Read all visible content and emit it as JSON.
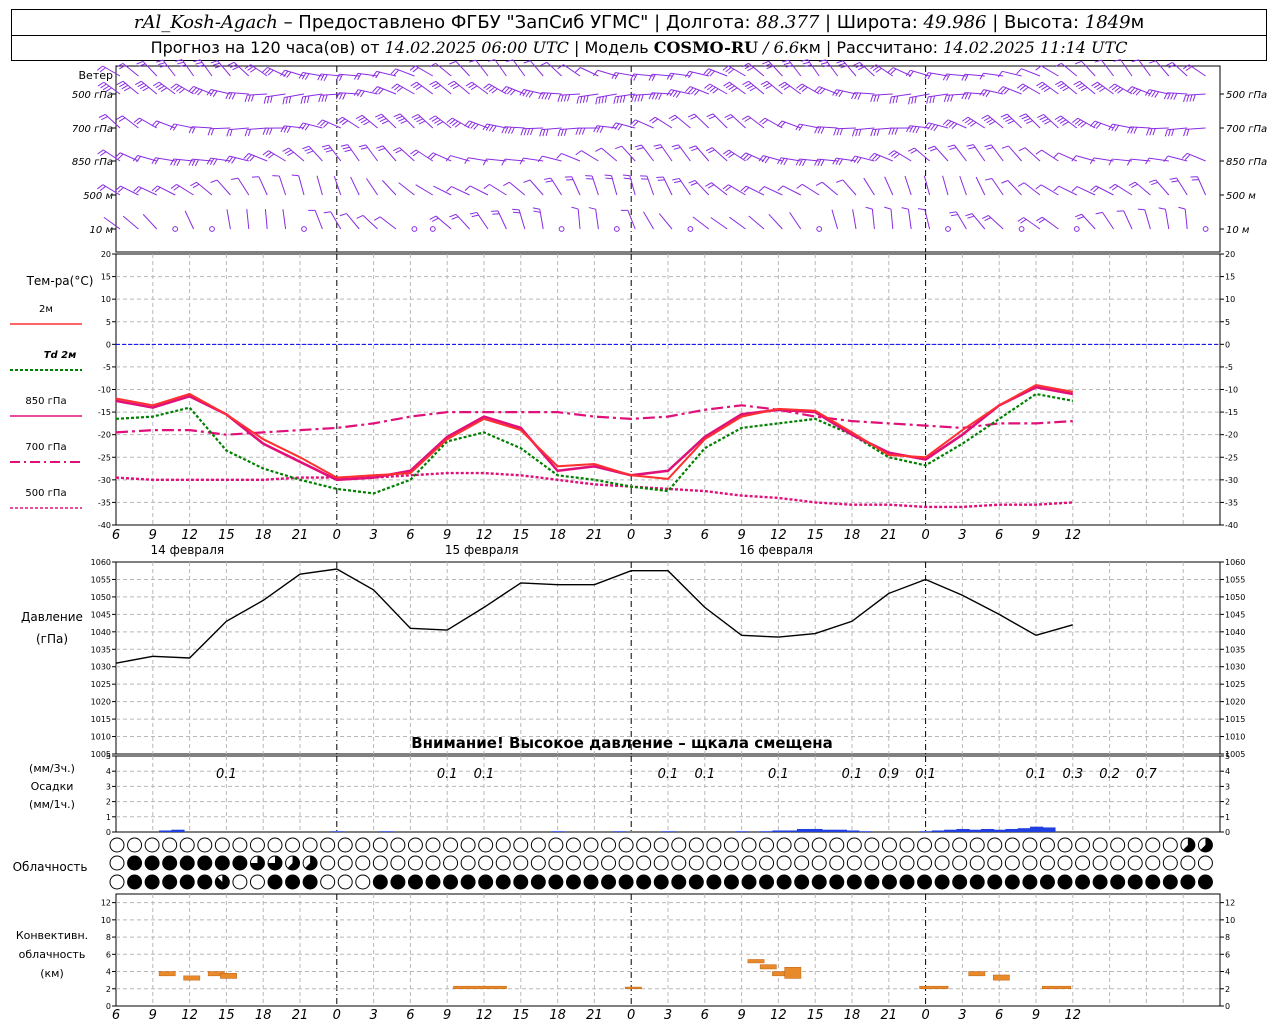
{
  "header": {
    "station": "rAl_Kosh-Agach",
    "provider": " – Предоставлено ФГБУ \"ЗапСиб УГМС\" | Долгота: ",
    "lon": "88.377",
    "lat_label": " | Широта: ",
    "lat": "49.986",
    "alt_label": " | Высота: ",
    "alt": "1849",
    "alt_unit": "м",
    "forecast_label": "Прогноз на 120 часа(ов) от ",
    "forecast_time": "14.02.2025 06:00 UTC",
    "model_label": " | Модель ",
    "model": "COSMO-RU",
    "res": " / 6.6",
    "res_unit": "км",
    "calc_label": " | Рассчитано: ",
    "calc_time": "14.02.2025 11:14 UTC"
  },
  "colors": {
    "t2m": "#ff3030",
    "td2m": "#008000",
    "t850": "#e0107a",
    "t700": "#e0107a",
    "t500": "#e0107a",
    "wind": "#8a2be2",
    "zero": "#0000ff",
    "precip": "#1f3fe0",
    "convective": "#e88a2a"
  },
  "chart_data": [
    {
      "type": "wind-barbs",
      "label": "Ветер",
      "levels": [
        "500 гПа",
        "700 гПа",
        "850 гПа",
        "500 м",
        "10 м"
      ],
      "note": "direction in degrees, speed in knots, every 3 h from 06 UTC"
    },
    {
      "type": "line",
      "ylabel": "Тем-ра(°C)",
      "ylim": [
        -40,
        20
      ],
      "yticks": [
        20,
        15,
        10,
        5,
        0,
        -5,
        -10,
        -15,
        -20,
        -25,
        -30,
        -35,
        -40
      ],
      "x": [
        "6",
        "9",
        "12",
        "15",
        "18",
        "21",
        "0",
        "3",
        "6",
        "9",
        "12",
        "15",
        "18",
        "21",
        "0",
        "3",
        "6",
        "9",
        "12",
        "15",
        "18",
        "21",
        "0",
        "3",
        "6",
        "9",
        "12"
      ],
      "dates": [
        {
          "label": "14 февраля",
          "hour": 5
        },
        {
          "label": "15 февраля",
          "hour": 29
        },
        {
          "label": "16 февраля",
          "hour": 53
        }
      ],
      "series": [
        {
          "name": "2м",
          "values": [
            -12,
            -13.5,
            -11,
            -15.5,
            -21,
            -25,
            -29.5,
            -29,
            -28.5,
            -21,
            -16.5,
            -19,
            -27,
            -26.5,
            -29,
            -29.8,
            -21,
            -16,
            -14.3,
            -14.7,
            -19.5,
            -24.5,
            -25,
            -19,
            -13.5,
            -9,
            -10.5
          ]
        },
        {
          "name": "Td 2м",
          "values": [
            -16.5,
            -16,
            -14,
            -23.5,
            -27.5,
            -30,
            -32,
            -33,
            -30,
            -21.5,
            -19.5,
            -23,
            -29,
            -30,
            -31.5,
            -32.5,
            -23,
            -18.5,
            -17.5,
            -16.5,
            -20,
            -25,
            -26.8,
            -22,
            -16.5,
            -11,
            -12.5
          ]
        },
        {
          "name": "850 гПа",
          "values": [
            -12.5,
            -14,
            -11.5,
            -15.5,
            -22,
            -26,
            -30,
            -29.5,
            -28,
            -20.5,
            -16,
            -18.5,
            -28,
            -27,
            -29,
            -28,
            -20.5,
            -15.5,
            -14.5,
            -15,
            -20,
            -24,
            -25.5,
            -20,
            -13.5,
            -9.5,
            -11
          ]
        },
        {
          "name": "700 гПа",
          "values": [
            -19.5,
            -19,
            -19,
            -20,
            -19.5,
            -19,
            -18.5,
            -17.5,
            -16,
            -15,
            -15,
            -15,
            -15,
            -16,
            -16.5,
            -16,
            -14.5,
            -13.5,
            -14.5,
            -16,
            -17,
            -17.5,
            -18,
            -18.5,
            -17.5,
            -17.5,
            -17
          ]
        },
        {
          "name": "500 гПа",
          "values": [
            -29.5,
            -30,
            -30,
            -30,
            -30,
            -29.5,
            -29.5,
            -29.5,
            -29,
            -28.5,
            -28.5,
            -29,
            -30,
            -31,
            -31.5,
            -32,
            -32.5,
            -33.5,
            -34,
            -35,
            -35.5,
            -35.5,
            -36,
            -36,
            -35.5,
            -35.5,
            -35
          ]
        }
      ]
    },
    {
      "type": "line",
      "ylabel": "Давление",
      "yunit": "(гПа)",
      "ylim": [
        1005,
        1060
      ],
      "yticks": [
        1060,
        1055,
        1050,
        1045,
        1040,
        1035,
        1030,
        1025,
        1020,
        1015,
        1010,
        1005
      ],
      "series": [
        {
          "values": [
            1031,
            1033,
            1032.5,
            1043,
            1049,
            1056.5,
            1058,
            1052,
            1041,
            1040.5,
            1047,
            1054,
            1053.5,
            1053.5,
            1057.5,
            1057.5,
            1047,
            1039,
            1038.5,
            1039.5,
            1043,
            1051,
            1055,
            1050.5,
            1045,
            1039,
            1042
          ]
        }
      ],
      "annotation": "Внимание! Высокое давление – щкала смещена"
    },
    {
      "type": "bar",
      "ylabel": "(мм/3ч.)",
      "label": "Осадки",
      "yunit": "(мм/1ч.)",
      "ylim": [
        0,
        5
      ],
      "yticks": [
        5,
        4,
        3,
        2,
        1,
        0
      ],
      "sums": [
        {
          "hour": 9,
          "value": "0.1"
        },
        {
          "hour": 27,
          "value": "0.1"
        },
        {
          "hour": 30,
          "value": "0.1"
        },
        {
          "hour": 45,
          "value": "0.1"
        },
        {
          "hour": 48,
          "value": "0.1"
        },
        {
          "hour": 54,
          "value": "0.1"
        },
        {
          "hour": 60,
          "value": "0.1"
        },
        {
          "hour": 63,
          "value": "0.9"
        },
        {
          "hour": 66,
          "value": "0.1"
        },
        {
          "hour": 75,
          "value": "0.1"
        },
        {
          "hour": 78,
          "value": "0.3"
        },
        {
          "hour": 81,
          "value": "0.2"
        },
        {
          "hour": 84,
          "value": "0.7"
        }
      ],
      "bars": [
        [
          4,
          0.1
        ],
        [
          5,
          0.15
        ],
        [
          18,
          0.05
        ],
        [
          22,
          0.05
        ],
        [
          36,
          0.05
        ],
        [
          41,
          0.05
        ],
        [
          45,
          0.05
        ],
        [
          51,
          0.05
        ],
        [
          53,
          0.05
        ],
        [
          54,
          0.1
        ],
        [
          55,
          0.1
        ],
        [
          56,
          0.2
        ],
        [
          57,
          0.2
        ],
        [
          58,
          0.15
        ],
        [
          59,
          0.15
        ],
        [
          60,
          0.1
        ],
        [
          61,
          0.05
        ],
        [
          66,
          0.05
        ],
        [
          67,
          0.1
        ],
        [
          68,
          0.15
        ],
        [
          69,
          0.2
        ],
        [
          70,
          0.15
        ],
        [
          71,
          0.2
        ],
        [
          72,
          0.15
        ],
        [
          73,
          0.2
        ],
        [
          74,
          0.25
        ],
        [
          75,
          0.35
        ],
        [
          76,
          0.3
        ]
      ]
    },
    {
      "type": "cloud-symbols",
      "label": "Облачность",
      "rows": [
        "0000000000000000000000000000000000000000000000000000000000000555557000000000000000000000000000000000000000000000000000000000",
        "0888888866550000000000000000000000000000000000000000000000000000000000000000000000000000000000000000000000000000000000000000",
        "0888887008880008888888888888888888888888888888888888888888888888888888888888888888888888888888888888888888888888888888888888"
      ]
    },
    {
      "type": "bar",
      "ylabel": "Конвективн.",
      "label": "облачность",
      "yunit": "(км)",
      "ylim": [
        0,
        13
      ],
      "yticks": [
        12,
        10,
        8,
        6,
        4,
        2,
        0
      ],
      "layers": [
        [
          4,
          1,
          3.5,
          4
        ],
        [
          6,
          1,
          3,
          3.5
        ],
        [
          8,
          1,
          3.5,
          4
        ],
        [
          9,
          1,
          3.2,
          3.8
        ],
        [
          28,
          4,
          2,
          2.3
        ],
        [
          42,
          1,
          2,
          2.2
        ],
        [
          52,
          1,
          5,
          5.4
        ],
        [
          53,
          1,
          4.3,
          4.8
        ],
        [
          54,
          1,
          3.5,
          4
        ],
        [
          55,
          1,
          3.2,
          4.5
        ],
        [
          66,
          2,
          2,
          2.3
        ],
        [
          70,
          1,
          3.5,
          4
        ],
        [
          72,
          1,
          3,
          3.6
        ],
        [
          76,
          2,
          2,
          2.3
        ]
      ]
    }
  ]
}
